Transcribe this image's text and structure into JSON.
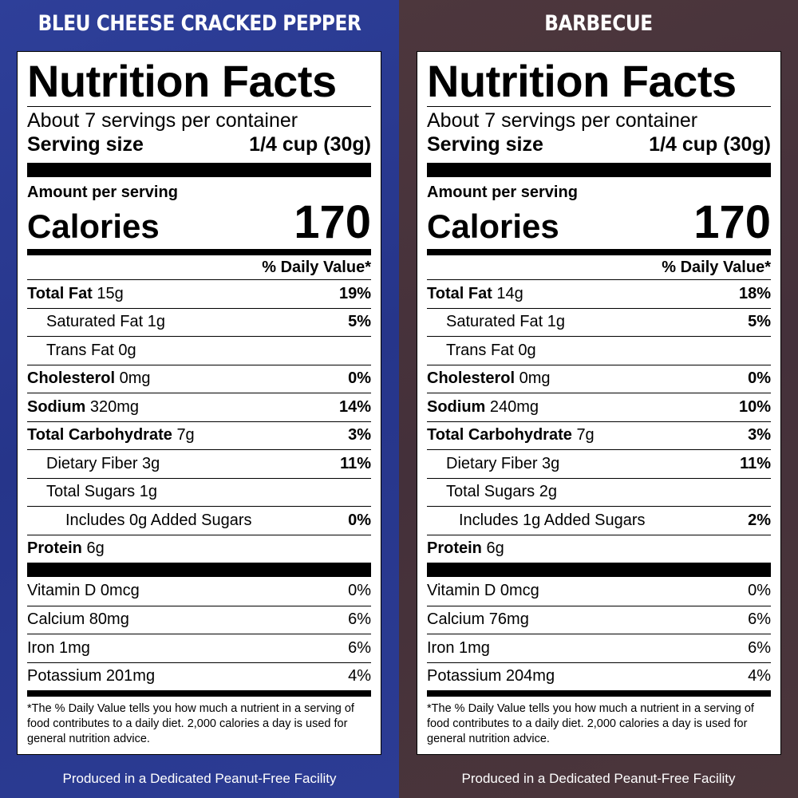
{
  "panels": [
    {
      "flavor": "BLEU CHEESE CRACKED PEPPER",
      "title": "Nutrition Facts",
      "servings": "About 7 servings per container",
      "serving_size_label": "Serving size",
      "serving_size_value": "1/4 cup (30g)",
      "amount_label": "Amount per serving",
      "calories_label": "Calories",
      "calories_value": "170",
      "dv_header": "% Daily Value*",
      "nutrients": [
        {
          "name": "Total Fat",
          "amount": "15g",
          "pct": "19%"
        },
        {
          "name": "Saturated Fat",
          "amount": "1g",
          "pct": "5%"
        },
        {
          "name": "Trans Fat",
          "amount": "0g",
          "pct": ""
        },
        {
          "name": "Cholesterol",
          "amount": "0mg",
          "pct": "0%"
        },
        {
          "name": "Sodium",
          "amount": "320mg",
          "pct": "14%"
        },
        {
          "name": "Total Carbohydrate",
          "amount": "7g",
          "pct": "3%"
        },
        {
          "name": "Dietary Fiber",
          "amount": "3g",
          "pct": "11%"
        },
        {
          "name": "Total Sugars",
          "amount": "1g",
          "pct": ""
        },
        {
          "name": "Includes 0g Added Sugars",
          "amount": "",
          "pct": "0%"
        },
        {
          "name": "Protein",
          "amount": "6g",
          "pct": ""
        }
      ],
      "vitamins": [
        {
          "name": "Vitamin D 0mcg",
          "pct": "0%"
        },
        {
          "name": "Calcium 80mg",
          "pct": "6%"
        },
        {
          "name": "Iron 1mg",
          "pct": "6%"
        },
        {
          "name": "Potassium 201mg",
          "pct": "4%"
        }
      ],
      "footnote": "*The % Daily Value tells you how much a nutrient in a serving of food contributes to a daily diet. 2,000 calories a day is used for general nutrition advice.",
      "facility": "Produced in a Dedicated Peanut-Free Facility"
    },
    {
      "flavor": "BARBECUE",
      "title": "Nutrition Facts",
      "servings": "About 7 servings per container",
      "serving_size_label": "Serving size",
      "serving_size_value": "1/4 cup (30g)",
      "amount_label": "Amount per serving",
      "calories_label": "Calories",
      "calories_value": "170",
      "dv_header": "% Daily Value*",
      "nutrients": [
        {
          "name": "Total Fat",
          "amount": "14g",
          "pct": "18%"
        },
        {
          "name": "Saturated Fat",
          "amount": "1g",
          "pct": "5%"
        },
        {
          "name": "Trans Fat",
          "amount": "0g",
          "pct": ""
        },
        {
          "name": "Cholesterol",
          "amount": "0mg",
          "pct": "0%"
        },
        {
          "name": "Sodium",
          "amount": "240mg",
          "pct": "10%"
        },
        {
          "name": "Total Carbohydrate",
          "amount": "7g",
          "pct": "3%"
        },
        {
          "name": "Dietary Fiber",
          "amount": "3g",
          "pct": "11%"
        },
        {
          "name": "Total Sugars",
          "amount": "2g",
          "pct": ""
        },
        {
          "name": "Includes 1g Added Sugars",
          "amount": "",
          "pct": "2%"
        },
        {
          "name": "Protein",
          "amount": "6g",
          "pct": ""
        }
      ],
      "vitamins": [
        {
          "name": "Vitamin D 0mcg",
          "pct": "0%"
        },
        {
          "name": "Calcium 76mg",
          "pct": "6%"
        },
        {
          "name": "Iron 1mg",
          "pct": "6%"
        },
        {
          "name": "Potassium 204mg",
          "pct": "4%"
        }
      ],
      "footnote": "*The % Daily Value tells you how much a nutrient in a serving of food contributes to a daily diet. 2,000 calories a day is used for general nutrition advice.",
      "facility": "Produced in a Dedicated Peanut-Free Facility"
    }
  ],
  "colors": {
    "panel_left": "#2b3a8f",
    "panel_right": "#4a343a",
    "label_bg": "#ffffff",
    "text": "#000000"
  }
}
